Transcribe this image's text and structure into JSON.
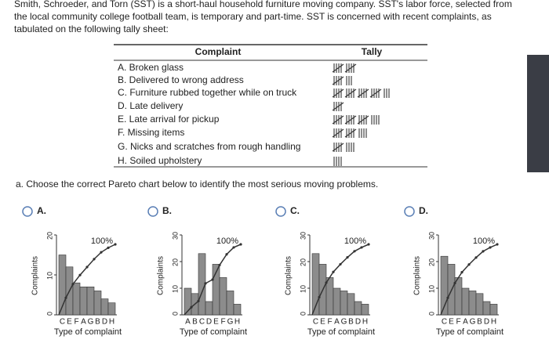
{
  "intro": [
    "Smith, Schroeder, and Torn (SST) is a short-haul household furniture moving company. SST's labor force, selected from",
    "the local community college football team, is temporary and part-time. SST is concerned with recent complaints, as",
    "tabulated on the following tally sheet:"
  ],
  "table": {
    "header": [
      "Complaint",
      "Tally"
    ],
    "rows": [
      {
        "complaint": "A. Broken glass",
        "tally": 10
      },
      {
        "complaint": "B. Delivered to wrong address",
        "tally": 8
      },
      {
        "complaint": "C. Furniture rubbed together while on truck",
        "tally": 23
      },
      {
        "complaint": "D. Late delivery",
        "tally": 5
      },
      {
        "complaint": "E. Late arrival for pickup",
        "tally": 19
      },
      {
        "complaint": "F. Missing items",
        "tally": 14
      },
      {
        "complaint": "G. Nicks and scratches from rough handling",
        "tally": 9
      },
      {
        "complaint": "H. Soiled upholstery",
        "tally": 4
      }
    ]
  },
  "question": "a. Choose the correct Pareto chart below to identify the most serious moving problems.",
  "options": [
    {
      "label": "A.",
      "chart": {
        "type": "bar",
        "ylabel": "Complaints",
        "xlabel": "Type of complaint",
        "categories": [
          "C",
          "E",
          "F",
          "A",
          "G",
          "B",
          "D",
          "H"
        ],
        "values": [
          15,
          12,
          8,
          7,
          7,
          6,
          4,
          3
        ],
        "ylim": [
          0,
          20
        ],
        "yticks": [
          0,
          10,
          20
        ],
        "cumulative_label": "100%",
        "color": "#8c8c8c"
      }
    },
    {
      "label": "B.",
      "chart": {
        "type": "bar",
        "ylabel": "Complaints",
        "xlabel": "Type of complaint",
        "categories": [
          "A",
          "B",
          "C",
          "D",
          "E",
          "F",
          "G",
          "H"
        ],
        "values": [
          10,
          8,
          23,
          5,
          19,
          14,
          9,
          4
        ],
        "ylim": [
          0,
          30
        ],
        "yticks": [
          0,
          10,
          20,
          30
        ],
        "cumulative_label": "100%",
        "color": "#8c8c8c"
      }
    },
    {
      "label": "C.",
      "chart": {
        "type": "bar",
        "ylabel": "Complaints",
        "xlabel": "Type of complaint",
        "categories": [
          "C",
          "E",
          "F",
          "A",
          "G",
          "B",
          "D",
          "H"
        ],
        "values": [
          23,
          19,
          14,
          10,
          9,
          8,
          5,
          4
        ],
        "ylim": [
          0,
          30
        ],
        "yticks": [
          0,
          10,
          20,
          30
        ],
        "cumulative_label": "100%",
        "color": "#8c8c8c"
      }
    },
    {
      "label": "D.",
      "chart": {
        "type": "bar",
        "ylabel": "Complaints",
        "xlabel": "Type of complaint",
        "categories": [
          "C",
          "E",
          "F",
          "A",
          "G",
          "B",
          "D",
          "H"
        ],
        "values": [
          22,
          19,
          14,
          10,
          9,
          8,
          5,
          4
        ],
        "ylim": [
          0,
          30
        ],
        "yticks": [
          0,
          10,
          20,
          30
        ],
        "cumulative_label": "100%",
        "color": "#8c8c8c"
      }
    }
  ]
}
